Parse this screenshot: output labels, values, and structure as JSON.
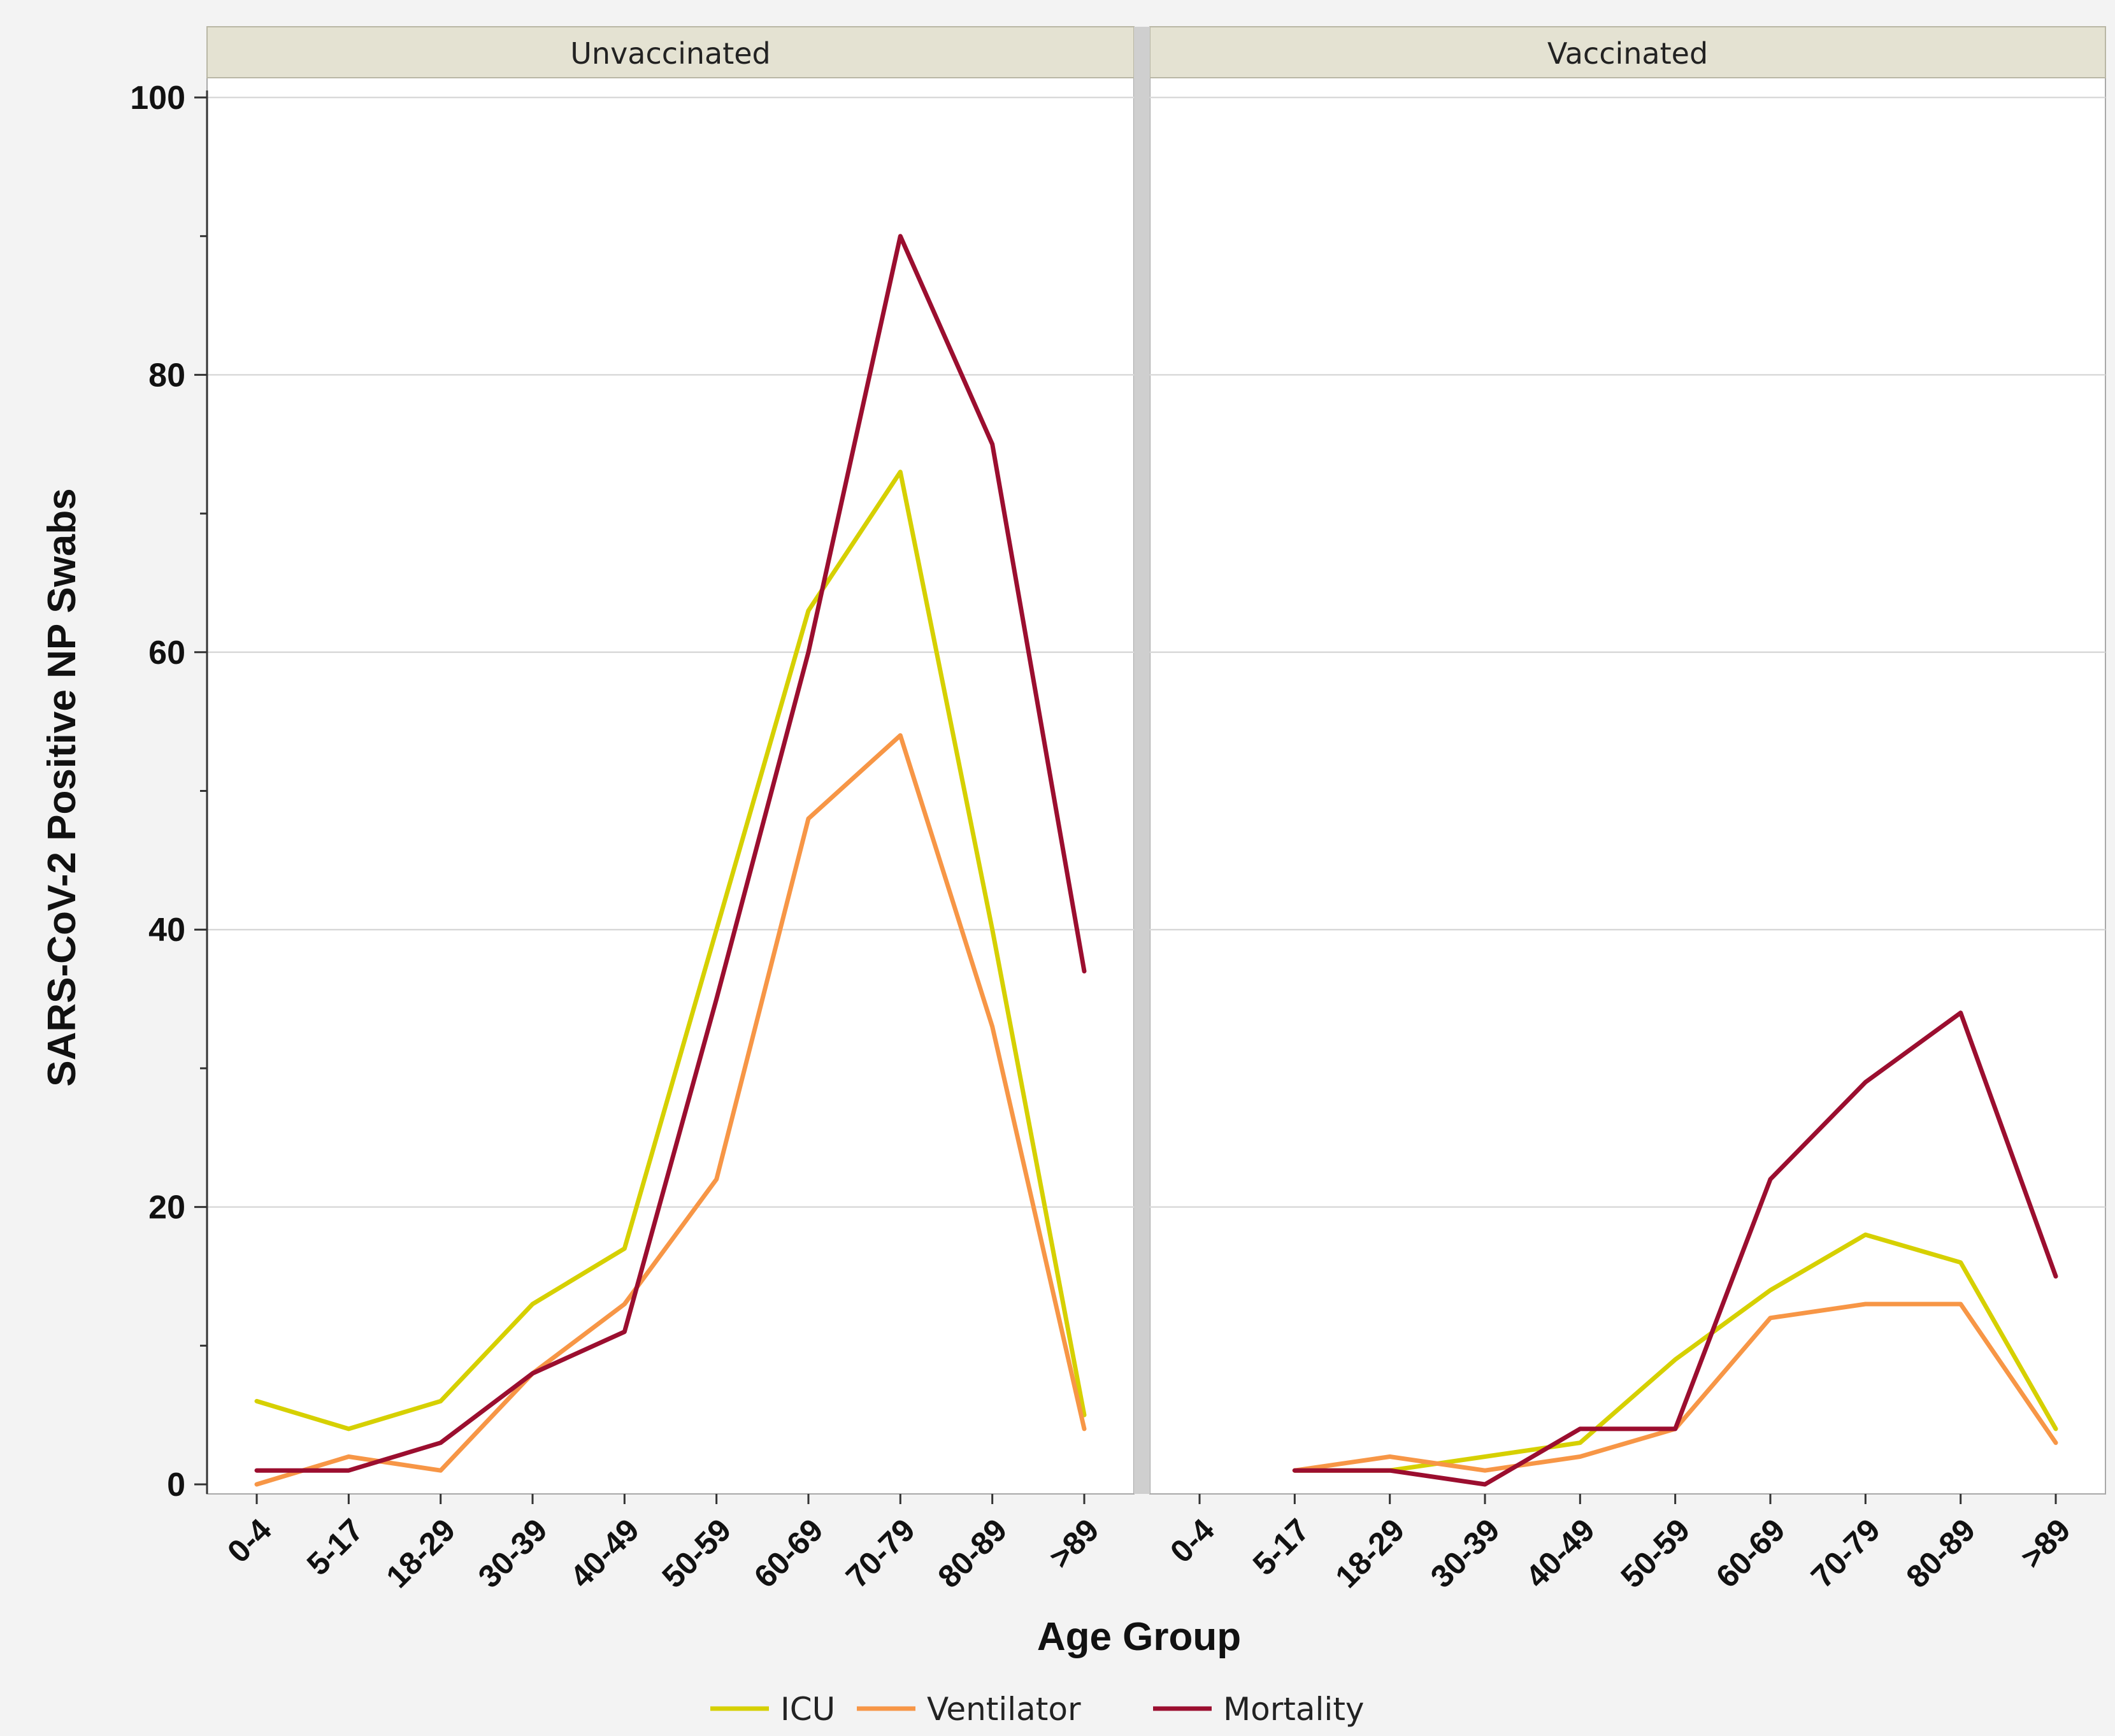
{
  "chart_data": {
    "type": "line",
    "facets": [
      "Unvaccinated",
      "Vaccinated"
    ],
    "categories": [
      "0-4",
      "5-17",
      "18-29",
      "30-39",
      "40-49",
      "50-59",
      "60-69",
      "70-79",
      "80-89",
      ">89"
    ],
    "ylabel": "SARS-CoV-2 Positive NP Swabs",
    "xlabel": "Age Group",
    "ylim": [
      0,
      100
    ],
    "yticks": [
      0,
      20,
      40,
      60,
      80,
      100
    ],
    "grid": true,
    "legend_position": "bottom",
    "series": [
      {
        "name": "ICU",
        "color": "#d6d000",
        "values": {
          "Unvaccinated": [
            6,
            4,
            6,
            13,
            17,
            40,
            63,
            73,
            40,
            5
          ],
          "Vaccinated": [
            null,
            1,
            1,
            2,
            3,
            9,
            14,
            18,
            16,
            4
          ]
        }
      },
      {
        "name": "Ventilator",
        "color": "#f79646",
        "values": {
          "Unvaccinated": [
            0,
            2,
            1,
            8,
            13,
            22,
            48,
            54,
            33,
            4
          ],
          "Vaccinated": [
            null,
            1,
            2,
            1,
            2,
            4,
            12,
            13,
            13,
            3
          ]
        }
      },
      {
        "name": "Mortality",
        "color": "#9b0e2f",
        "values": {
          "Unvaccinated": [
            1,
            1,
            3,
            8,
            11,
            35,
            60,
            90,
            75,
            37
          ],
          "Vaccinated": [
            null,
            1,
            1,
            0,
            4,
            4,
            22,
            29,
            34,
            15
          ]
        }
      }
    ]
  }
}
